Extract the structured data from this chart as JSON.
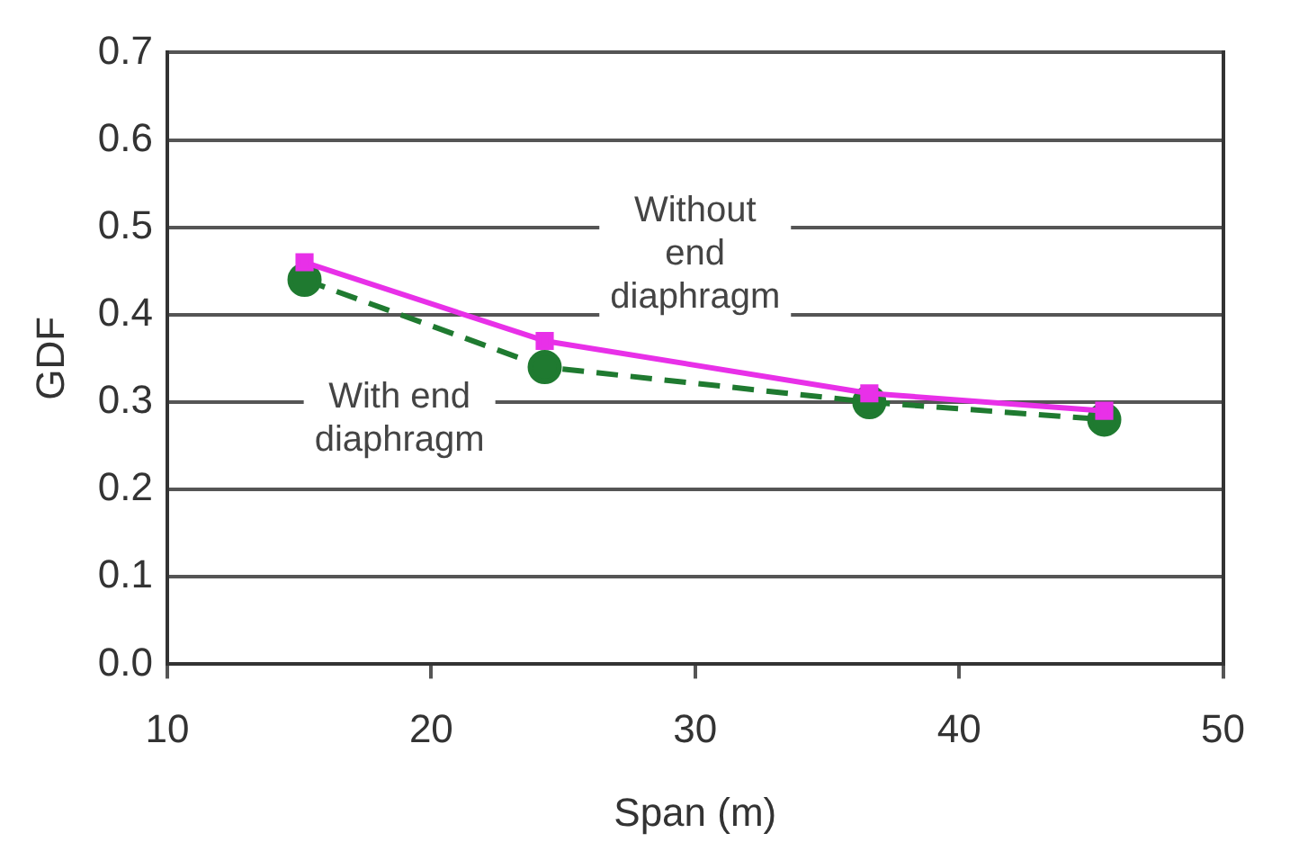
{
  "chart_data": {
    "type": "line",
    "xlabel": "Span (m)",
    "ylabel": "GDF",
    "x": [
      15.2,
      24.3,
      36.6,
      45.5
    ],
    "series": [
      {
        "name": "Without end diaphragm",
        "color": "#e830e8",
        "values": [
          0.46,
          0.37,
          0.31,
          0.29
        ],
        "marker": "square",
        "line_style": "solid"
      },
      {
        "name": "With end diaphragm",
        "color": "#1f7a30",
        "values": [
          0.44,
          0.34,
          0.3,
          0.28
        ],
        "marker": "circle",
        "line_style": "dashed"
      }
    ],
    "xlim": [
      10,
      50
    ],
    "xticks": [
      10,
      20,
      30,
      40,
      50
    ],
    "ylim": [
      0,
      0.7
    ],
    "yticks": [
      {
        "value": 0,
        "label": "0.0"
      },
      0.1,
      0.2,
      0.3,
      0.4,
      0.5,
      0.6,
      0.7
    ],
    "grid": "y",
    "legend": false
  }
}
